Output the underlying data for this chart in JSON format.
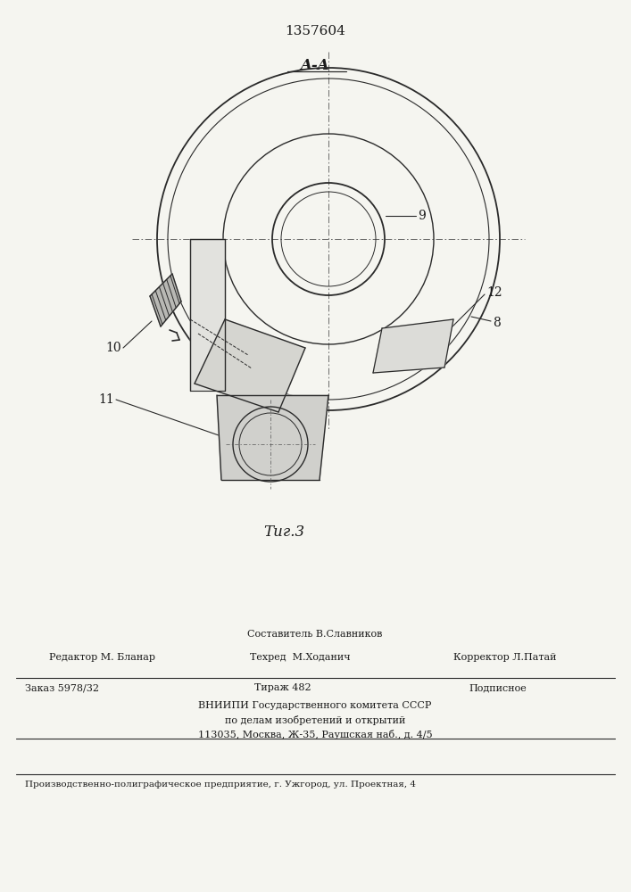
{
  "patent_number": "1357604",
  "section_label": "A-A",
  "fig_label": "Τиг.3",
  "label_9": "9",
  "label_8": "8",
  "label_10": "10",
  "label_11": "11",
  "label_12": "12",
  "footer_line0_center": "Составитель В.Славников",
  "footer_line1_left": "Редактор М. Бланар",
  "footer_line1_center": "Техред  М.Ходанич",
  "footer_line1_right": "Корректор Л.Патай",
  "footer_line2_left": "Заказ 5978/32",
  "footer_line2_center": "Тираж 482",
  "footer_line2_right": "Подписное",
  "footer_line3": "ВНИИПИ Государственного комитета СССР",
  "footer_line4": "по делам изобретений и открытий",
  "footer_line5": "113035, Москва, Ж-35, Раушская наб., д. 4/5",
  "footer_bottom": "Производственно-полиграфическое предприятие, г. Ужгород, ул. Проектная, 4",
  "bg_color": "#f5f5f0",
  "line_color": "#2a2a2a",
  "text_color": "#1a1a1a"
}
